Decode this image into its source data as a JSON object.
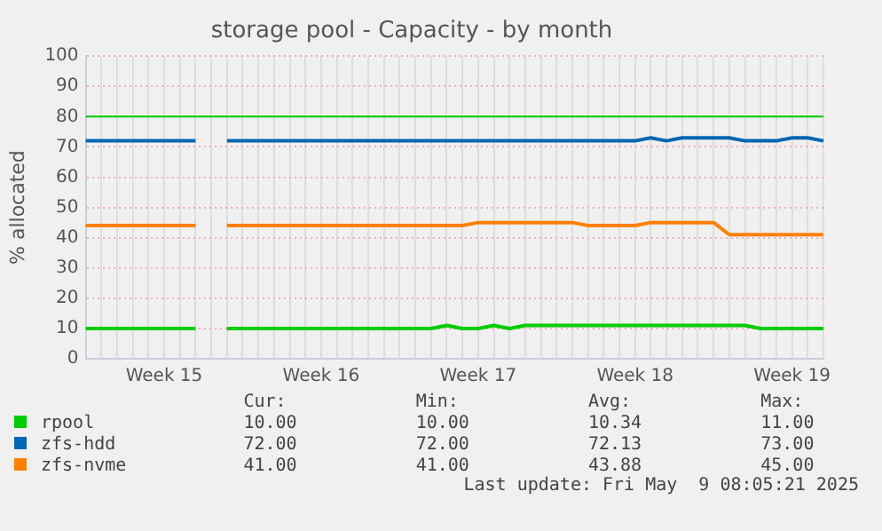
{
  "chart_data": {
    "type": "line",
    "title": "storage pool - Capacity - by month",
    "ylabel": "% allocated",
    "categories": [
      null,
      null,
      null,
      null,
      null,
      "Week 15",
      null,
      null,
      null,
      null,
      null,
      null,
      null,
      null,
      null,
      "Week 16",
      null,
      null,
      null,
      null,
      null,
      null,
      null,
      null,
      null,
      "Week 17",
      null,
      null,
      null,
      null,
      null,
      null,
      null,
      null,
      null,
      "Week 18",
      null,
      null,
      null,
      null,
      null,
      null,
      null,
      null,
      null,
      "Week 19",
      null,
      null
    ],
    "series": [
      {
        "name": "rpool",
        "color": "#00cc00",
        "values": [
          10,
          10,
          10,
          10,
          10,
          10,
          10,
          10,
          null,
          10,
          10,
          10,
          10,
          10,
          10,
          10,
          10,
          10,
          10,
          10,
          10,
          10,
          10,
          11,
          10,
          10,
          11,
          10,
          11,
          11,
          11,
          11,
          11,
          11,
          11,
          11,
          11,
          11,
          11,
          11,
          11,
          11,
          11,
          10,
          10,
          10,
          10,
          10
        ]
      },
      {
        "name": "zfs-hdd",
        "color": "#0066b3",
        "values": [
          72,
          72,
          72,
          72,
          72,
          72,
          72,
          72,
          null,
          72,
          72,
          72,
          72,
          72,
          72,
          72,
          72,
          72,
          72,
          72,
          72,
          72,
          72,
          72,
          72,
          72,
          72,
          72,
          72,
          72,
          72,
          72,
          72,
          72,
          72,
          72,
          73,
          72,
          73,
          73,
          73,
          73,
          72,
          72,
          72,
          73,
          73,
          72
        ]
      },
      {
        "name": "zfs-nvme",
        "color": "#ff8000",
        "values": [
          44,
          44,
          44,
          44,
          44,
          44,
          44,
          44,
          null,
          44,
          44,
          44,
          44,
          44,
          44,
          44,
          44,
          44,
          44,
          44,
          44,
          44,
          44,
          44,
          44,
          45,
          45,
          45,
          45,
          45,
          45,
          45,
          44,
          44,
          44,
          44,
          45,
          45,
          45,
          45,
          45,
          41,
          41,
          41,
          41,
          41,
          41,
          41
        ]
      }
    ],
    "ylim": [
      0,
      100
    ],
    "yticks": [
      0,
      10,
      20,
      30,
      40,
      50,
      60,
      70,
      80,
      90,
      100
    ],
    "grid": true,
    "legend": "bottom",
    "marker": "none",
    "line_style": "solid",
    "ref_lines": [
      {
        "axis": "y",
        "value": 80,
        "color": "#00cc00"
      }
    ],
    "annotations": [
      "Cur:",
      "Min:",
      "Avg:",
      "Max:",
      "10.00",
      "10.00",
      "10.34",
      "11.00",
      "72.00",
      "72.00",
      "72.13",
      "73.00",
      "41.00",
      "41.00",
      "43.88",
      "45.00",
      "Last update: Fri May  9 08:05:21 2025"
    ]
  }
}
